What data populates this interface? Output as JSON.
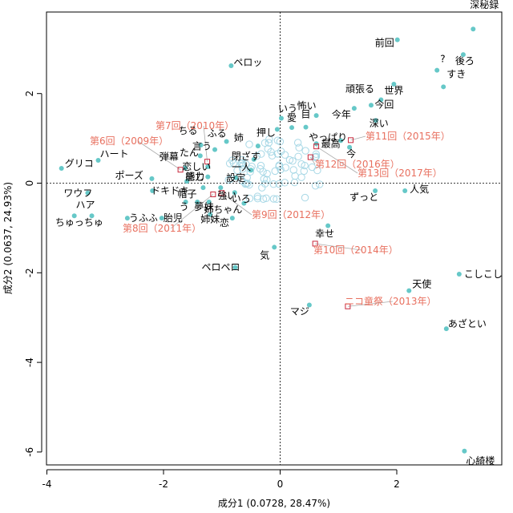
{
  "chart_data": {
    "type": "scatter",
    "xlabel": "成分1 (0.0728, 28.47%)",
    "ylabel": "成分2 (0.0637, 24.93%)",
    "xlim": [
      -4.2,
      3.8
    ],
    "ylim": [
      -6.3,
      3.8
    ],
    "xticks": [
      -4,
      -2,
      0,
      2
    ],
    "yticks": [
      -6,
      -4,
      -2,
      0,
      2
    ],
    "xtick_labels": [
      "-4",
      "-2",
      "0",
      "2"
    ],
    "ytick_labels": [
      "-6",
      "-4",
      "-2",
      "0",
      "2"
    ],
    "grid": false,
    "colors": {
      "word": "#66c8c8",
      "episode": "#c8283c",
      "episode_label": "#e8705f",
      "minor": "#a8d8e6",
      "leader": "#aaaaaa"
    },
    "words": [
      {
        "label": "深秘録",
        "x": 3.31,
        "y": 3.44
      },
      {
        "label": "前回",
        "x": 2.01,
        "y": 3.2
      },
      {
        "label": "?",
        "x": 2.69,
        "y": 2.52
      },
      {
        "label": "後ろ",
        "x": 3.14,
        "y": 2.87
      },
      {
        "label": "すき",
        "x": 2.8,
        "y": 2.15
      },
      {
        "label": "ペロッ",
        "x": -0.84,
        "y": 2.62
      },
      {
        "label": "世界",
        "x": 1.95,
        "y": 2.21
      },
      {
        "label": "頑張る",
        "x": 1.56,
        "y": 1.74
      },
      {
        "label": "今回",
        "x": 1.73,
        "y": 1.86
      },
      {
        "label": "今年",
        "x": 1.27,
        "y": 1.67
      },
      {
        "label": "深い",
        "x": 1.64,
        "y": 1.4
      },
      {
        "label": "怖い",
        "x": 0.62,
        "y": 1.51
      },
      {
        "label": "目",
        "x": 0.44,
        "y": 1.25
      },
      {
        "label": "いう",
        "x": 0.02,
        "y": 1.45
      },
      {
        "label": "押し",
        "x": -0.05,
        "y": 1.2
      },
      {
        "label": "愛",
        "x": 0.2,
        "y": 1.24
      },
      {
        "label": "やっぱり",
        "x": 1.04,
        "y": 0.95
      },
      {
        "label": "最高",
        "x": 0.62,
        "y": 0.88
      },
      {
        "label": "今",
        "x": 1.19,
        "y": 0.8
      },
      {
        "label": "姉",
        "x": -0.38,
        "y": 0.83
      },
      {
        "label": "閉ざす",
        "x": -0.45,
        "y": 0.53
      },
      {
        "label": "ちる",
        "x": -1.36,
        "y": 0.85
      },
      {
        "label": "ふる",
        "x": -0.92,
        "y": 0.93
      },
      {
        "label": "言う",
        "x": -1.12,
        "y": 0.75
      },
      {
        "label": "たん",
        "x": -1.37,
        "y": 0.61
      },
      {
        "label": "恋しい",
        "x": -1.24,
        "y": 0.37
      },
      {
        "label": "一人",
        "x": -0.5,
        "y": 0.29
      },
      {
        "label": "感じ",
        "x": -1.24,
        "y": 0.14
      },
      {
        "label": "設定",
        "x": -0.76,
        "y": 0.12
      },
      {
        "label": "弾幕",
        "x": -1.63,
        "y": 0.34
      },
      {
        "label": "能力",
        "x": -1.6,
        "y": 0.04
      },
      {
        "label": "ポーズ",
        "x": -2.2,
        "y": 0.1
      },
      {
        "label": "ドキドキ",
        "x": -2.19,
        "y": -0.17
      },
      {
        "label": "帽子",
        "x": -1.32,
        "y": -0.1
      },
      {
        "label": "強い",
        "x": -1.02,
        "y": -0.1
      },
      {
        "label": "いろ",
        "x": -0.78,
        "y": -0.21
      },
      {
        "label": "う",
        "x": -1.62,
        "y": -0.42
      },
      {
        "label": "夢",
        "x": -1.42,
        "y": -0.42
      },
      {
        "label": "妹",
        "x": -1.22,
        "y": -0.42
      },
      {
        "label": "姉ちゃん",
        "x": -0.62,
        "y": -0.45
      },
      {
        "label": "姉妹",
        "x": -1.2,
        "y": -0.7
      },
      {
        "label": "恋",
        "x": -0.82,
        "y": -0.78
      },
      {
        "label": "胎児",
        "x": -2.03,
        "y": -0.78
      },
      {
        "label": "うふふ",
        "x": -2.62,
        "y": -0.78
      },
      {
        "label": "ハート",
        "x": -3.12,
        "y": 0.51
      },
      {
        "label": "グリコ",
        "x": -3.75,
        "y": 0.33
      },
      {
        "label": "ワウフ",
        "x": -3.3,
        "y": -0.22
      },
      {
        "label": "ハア",
        "x": -3.23,
        "y": -0.73
      },
      {
        "label": "ちゅっちゅ",
        "x": -3.53,
        "y": -0.73
      },
      {
        "label": "ずっと",
        "x": 1.63,
        "y": -0.17
      },
      {
        "label": "人気",
        "x": 2.14,
        "y": -0.17
      },
      {
        "label": "幸せ",
        "x": 0.82,
        "y": -0.95
      },
      {
        "label": "気",
        "x": -0.1,
        "y": -1.43
      },
      {
        "label": "ペロペロ",
        "x": -0.77,
        "y": -1.88
      },
      {
        "label": "天使",
        "x": 2.21,
        "y": -2.4
      },
      {
        "label": "こしこし",
        "x": 3.07,
        "y": -2.03
      },
      {
        "label": "マジ",
        "x": 0.5,
        "y": -2.72
      },
      {
        "label": "あざとい",
        "x": 2.85,
        "y": -3.25
      },
      {
        "label": "心綺楼",
        "x": 3.16,
        "y": -5.98
      }
    ],
    "episodes": [
      {
        "label": "第6回（2009年）",
        "x": -1.71,
        "y": 0.3
      },
      {
        "label": "第7回（2010年）",
        "x": -1.25,
        "y": 0.48
      },
      {
        "label": "第8回（2011年）",
        "x": -1.15,
        "y": -0.25
      },
      {
        "label": "第9回（2012年）",
        "x": -1.0,
        "y": -0.22
      },
      {
        "label": "第10回（2014年）",
        "x": 0.6,
        "y": -1.35
      },
      {
        "label": "第11回（2015年）",
        "x": 1.21,
        "y": 0.96
      },
      {
        "label": "第12回（2016年）",
        "x": 0.52,
        "y": 0.58
      },
      {
        "label": "第13回（2017年）",
        "x": 0.62,
        "y": 0.82
      },
      {
        "label": "ニコ童祭（2013年）",
        "x": 1.16,
        "y": -2.75
      }
    ]
  }
}
